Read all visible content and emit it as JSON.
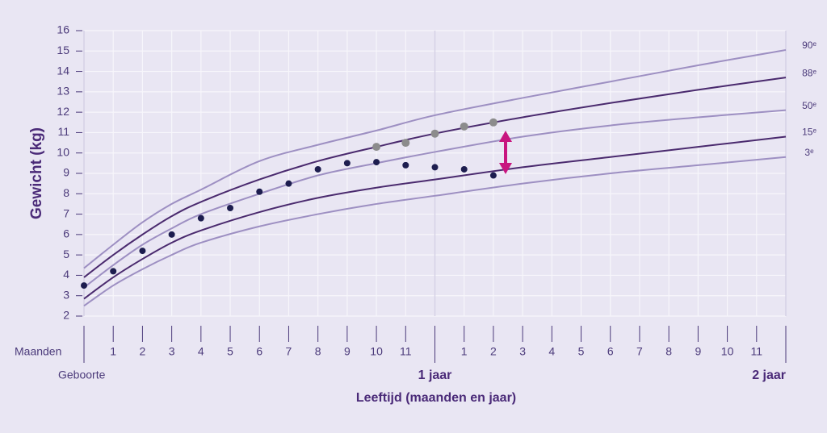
{
  "chart_data": {
    "type": "line",
    "y_label": "Gewicht (kg)",
    "x_label": "Leeftijd (maanden en jaar)",
    "x_unit_label": "Maanden",
    "ylim": [
      2,
      16
    ],
    "yticks": [
      2,
      3,
      4,
      5,
      6,
      7,
      8,
      9,
      10,
      11,
      12,
      13,
      14,
      15,
      16
    ],
    "xlim": [
      0,
      24
    ],
    "xticks": [
      1,
      2,
      3,
      4,
      5,
      6,
      7,
      8,
      9,
      10,
      11,
      {
        "value": 13,
        "label": "1"
      },
      {
        "value": 14,
        "label": "2"
      },
      {
        "value": 15,
        "label": "3"
      },
      {
        "value": 16,
        "label": "4"
      },
      {
        "value": 17,
        "label": "5"
      },
      {
        "value": 18,
        "label": "6"
      },
      {
        "value": 19,
        "label": "7"
      },
      {
        "value": 20,
        "label": "8"
      },
      {
        "value": 21,
        "label": "9"
      },
      {
        "value": 22,
        "label": "10"
      },
      {
        "value": 23,
        "label": "11"
      }
    ],
    "year_ticks": [
      {
        "value": 0,
        "label": "Geboorte"
      },
      {
        "value": 12,
        "label": "1 jaar"
      },
      {
        "value": 24,
        "label": "2 jaar"
      }
    ],
    "grid": true,
    "x": [
      0,
      1,
      2,
      3,
      4,
      6,
      8,
      10,
      12,
      15,
      18,
      21,
      24
    ],
    "series": [
      {
        "name": "90ᵉ",
        "color": "#9d8fc2",
        "values": [
          4.35,
          5.5,
          6.6,
          7.5,
          8.2,
          9.6,
          10.4,
          11.1,
          11.85,
          12.7,
          13.5,
          14.3,
          15.05
        ]
      },
      {
        "name": "88ᵉ",
        "color": "#4a2a6e",
        "values": [
          3.9,
          5.0,
          6.0,
          6.9,
          7.6,
          8.7,
          9.6,
          10.3,
          10.95,
          11.75,
          12.45,
          13.1,
          13.7
        ]
      },
      {
        "name": "50ᵉ",
        "color": "#9d8fc2",
        "values": [
          3.4,
          4.5,
          5.5,
          6.3,
          7.0,
          8.0,
          8.9,
          9.5,
          10.05,
          10.8,
          11.35,
          11.75,
          12.1
        ]
      },
      {
        "name": "15ᵉ",
        "color": "#4a2a6e",
        "values": [
          2.85,
          3.9,
          4.8,
          5.6,
          6.2,
          7.1,
          7.8,
          8.3,
          8.7,
          9.3,
          9.8,
          10.3,
          10.8
        ]
      },
      {
        "name": "3ᵉ",
        "color": "#9d8fc2",
        "values": [
          2.5,
          3.5,
          4.3,
          5.0,
          5.6,
          6.4,
          7.0,
          7.5,
          7.9,
          8.5,
          9.0,
          9.4,
          9.8
        ]
      }
    ],
    "points": [
      {
        "color": "#1d1d4f",
        "x": [
          0,
          1,
          2,
          3,
          4,
          5,
          6,
          7,
          8,
          9,
          10,
          11,
          12,
          13,
          14
        ],
        "values": [
          3.5,
          4.2,
          5.2,
          6.0,
          6.8,
          7.3,
          8.1,
          8.5,
          9.2,
          9.5,
          9.55,
          9.4,
          9.3,
          9.2,
          8.9
        ]
      },
      {
        "color": "#8c8c8c",
        "x": [
          10,
          11,
          12,
          13,
          14
        ],
        "values": [
          10.3,
          10.5,
          10.95,
          11.3,
          11.5
        ]
      }
    ]
  }
}
